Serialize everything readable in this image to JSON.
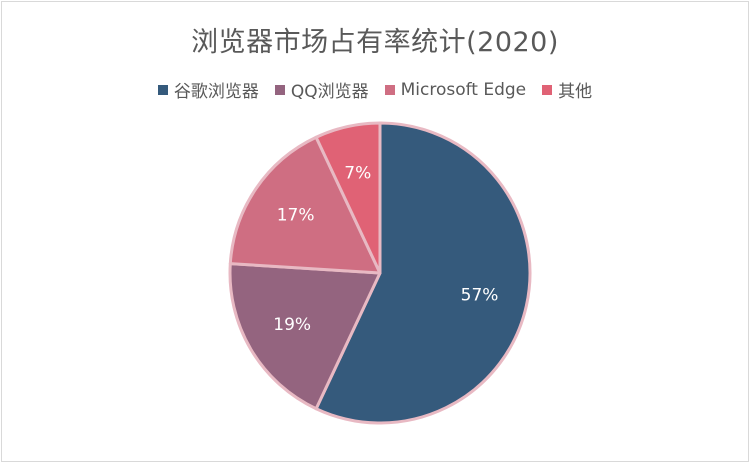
{
  "chart_data": {
    "type": "pie",
    "title": "浏览器市场占有率统计(2020)",
    "legend_position": "top",
    "categories": [
      "谷歌浏览器",
      "QQ浏览器",
      "Microsoft Edge",
      "其他"
    ],
    "values": [
      57,
      19,
      17,
      7
    ],
    "data_labels": [
      "57%",
      "19%",
      "17%",
      "7%"
    ],
    "colors": [
      "#355a7c",
      "#94647f",
      "#cf6e82",
      "#e06275"
    ]
  }
}
